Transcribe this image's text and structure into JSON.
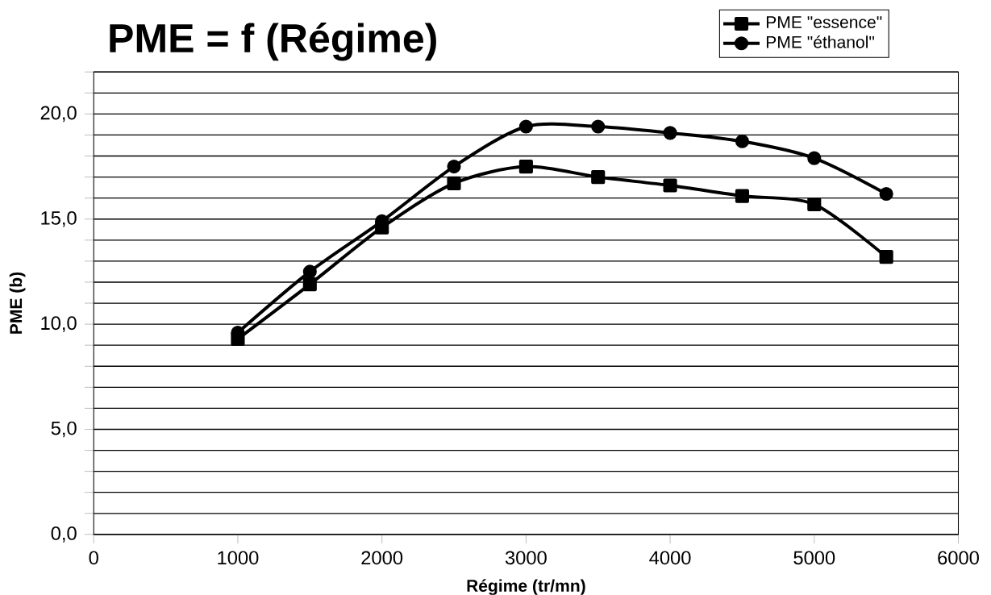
{
  "chart_data": {
    "type": "line",
    "title": "PME = f (Régime)",
    "xlabel": "Régime (tr/mn)",
    "ylabel": "PME (b)",
    "x": [
      1000,
      1500,
      2000,
      2500,
      3000,
      3500,
      4000,
      4500,
      5000,
      5500
    ],
    "series": [
      {
        "name": "PME \"essence\"",
        "color": "#000000",
        "marker": "square",
        "values": [
          9.3,
          11.9,
          14.6,
          16.7,
          17.5,
          17.0,
          16.6,
          16.1,
          15.7,
          13.2
        ]
      },
      {
        "name": "PME \"éthanol\"",
        "color": "#000000",
        "marker": "circle",
        "values": [
          9.6,
          12.5,
          14.9,
          17.5,
          19.4,
          19.4,
          19.1,
          18.7,
          17.9,
          16.2
        ]
      }
    ],
    "xlim": [
      0,
      6000
    ],
    "xticks": [
      0,
      1000,
      2000,
      3000,
      4000,
      5000,
      6000
    ],
    "ylim": [
      0,
      22
    ],
    "yticks": [
      {
        "value": 0,
        "label": "0,0"
      },
      {
        "value": 1,
        "label": null
      },
      {
        "value": 2,
        "label": null
      },
      {
        "value": 3,
        "label": null
      },
      {
        "value": 4,
        "label": null
      },
      {
        "value": 5,
        "label": "5,0"
      },
      {
        "value": 6,
        "label": null
      },
      {
        "value": 7,
        "label": null
      },
      {
        "value": 8,
        "label": null
      },
      {
        "value": 9,
        "label": null
      },
      {
        "value": 10,
        "label": "10,0"
      },
      {
        "value": 11,
        "label": null
      },
      {
        "value": 12,
        "label": null
      },
      {
        "value": 13,
        "label": null
      },
      {
        "value": 14,
        "label": null
      },
      {
        "value": 15,
        "label": "15,0"
      },
      {
        "value": 16,
        "label": null
      },
      {
        "value": 17,
        "label": null
      },
      {
        "value": 18,
        "label": null
      },
      {
        "value": 19,
        "label": null
      },
      {
        "value": 20,
        "label": "20,0"
      },
      {
        "value": 21,
        "label": null
      },
      {
        "value": 22,
        "label": null
      }
    ],
    "grid": "y",
    "legend": "top right",
    "line_style": "solid"
  }
}
